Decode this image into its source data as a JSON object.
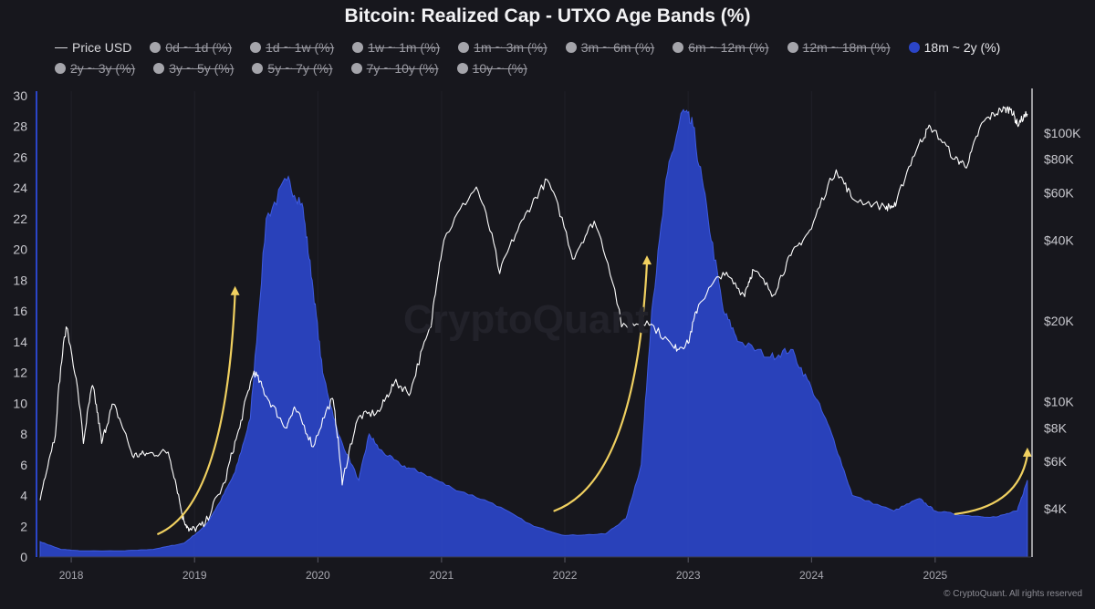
{
  "chart_data": {
    "type": "area",
    "title": "Bitcoin: Realized Cap - UTXO Age Bands (%)",
    "legend": [
      {
        "label": "Price USD",
        "kind": "line",
        "active": true
      },
      {
        "label": "0d ~ 1d (%)",
        "active": false
      },
      {
        "label": "1d ~ 1w (%)",
        "active": false
      },
      {
        "label": "1w ~ 1m (%)",
        "active": false
      },
      {
        "label": "1m ~ 3m (%)",
        "active": false
      },
      {
        "label": "3m ~ 6m (%)",
        "active": false
      },
      {
        "label": "6m ~ 12m (%)",
        "active": false
      },
      {
        "label": "12m ~ 18m (%)",
        "active": false
      },
      {
        "label": "18m ~ 2y (%)",
        "active": true,
        "color": "#2b45c8"
      },
      {
        "label": "2y ~ 3y (%)",
        "active": false
      },
      {
        "label": "3y ~ 5y (%)",
        "active": false
      },
      {
        "label": "5y ~ 7y (%)",
        "active": false
      },
      {
        "label": "7y ~ 10y (%)",
        "active": false
      },
      {
        "label": "10y ~ (%)",
        "active": false
      }
    ],
    "x_ticks": [
      "2018",
      "2019",
      "2020",
      "2021",
      "2022",
      "2023",
      "2024",
      "2025"
    ],
    "y_left": {
      "range": [
        0,
        30
      ],
      "ticks": [
        "0",
        "2",
        "4",
        "6",
        "8",
        "10",
        "12",
        "14",
        "16",
        "18",
        "20",
        "22",
        "24",
        "26",
        "28",
        "30"
      ]
    },
    "y_right": {
      "scale": "log",
      "ticks": [
        {
          "label": "$4K",
          "value": 4000
        },
        {
          "label": "$6K",
          "value": 6000
        },
        {
          "label": "$8K",
          "value": 8000
        },
        {
          "label": "$10K",
          "value": 10000
        },
        {
          "label": "$20K",
          "value": 20000
        },
        {
          "label": "$40K",
          "value": 40000
        },
        {
          "label": "$60K",
          "value": 60000
        },
        {
          "label": "$80K",
          "value": 80000
        },
        {
          "label": "$100K",
          "value": 100000
        }
      ]
    },
    "series": [
      {
        "name": "18m ~ 2y (%)",
        "kind": "area",
        "color": "#2b45c8",
        "points": [
          [
            "2017-10-01",
            1.0
          ],
          [
            "2017-12-01",
            0.5
          ],
          [
            "2018-02-01",
            0.4
          ],
          [
            "2018-06-01",
            0.4
          ],
          [
            "2018-09-01",
            0.5
          ],
          [
            "2018-12-01",
            0.9
          ],
          [
            "2019-02-01",
            2.0
          ],
          [
            "2019-03-15",
            3.5
          ],
          [
            "2019-05-01",
            5.5
          ],
          [
            "2019-06-15",
            9.0
          ],
          [
            "2019-08-01",
            22.0
          ],
          [
            "2019-10-01",
            24.5
          ],
          [
            "2019-11-15",
            23.0
          ],
          [
            "2019-12-15",
            18.0
          ],
          [
            "2020-01-15",
            12.0
          ],
          [
            "2020-03-01",
            8.0
          ],
          [
            "2020-05-01",
            5.0
          ],
          [
            "2020-06-01",
            8.0
          ],
          [
            "2020-07-01",
            7.0
          ],
          [
            "2020-09-01",
            6.0
          ],
          [
            "2020-11-01",
            5.5
          ],
          [
            "2021-02-01",
            4.5
          ],
          [
            "2021-06-01",
            3.5
          ],
          [
            "2021-10-01",
            2.0
          ],
          [
            "2022-01-01",
            1.4
          ],
          [
            "2022-05-01",
            1.5
          ],
          [
            "2022-07-01",
            2.5
          ],
          [
            "2022-08-15",
            6.0
          ],
          [
            "2022-09-15",
            16.0
          ],
          [
            "2022-11-01",
            25.0
          ],
          [
            "2022-12-15",
            29.0
          ],
          [
            "2023-01-15",
            28.0
          ],
          [
            "2023-03-01",
            22.0
          ],
          [
            "2023-04-15",
            16.0
          ],
          [
            "2023-06-01",
            14.0
          ],
          [
            "2023-09-01",
            13.0
          ],
          [
            "2023-11-01",
            13.5
          ],
          [
            "2024-01-01",
            11.0
          ],
          [
            "2024-03-01",
            8.0
          ],
          [
            "2024-05-01",
            4.0
          ],
          [
            "2024-09-01",
            3.0
          ],
          [
            "2024-11-15",
            3.8
          ],
          [
            "2025-01-01",
            3.0
          ],
          [
            "2025-04-01",
            2.7
          ],
          [
            "2025-07-01",
            2.6
          ],
          [
            "2025-09-01",
            3.0
          ],
          [
            "2025-10-01",
            5.0
          ]
        ]
      },
      {
        "name": "Price USD",
        "kind": "line",
        "axis": "right",
        "color": "#ffffff",
        "points": [
          [
            "2017-10-01",
            4300
          ],
          [
            "2017-11-15",
            7500
          ],
          [
            "2017-12-17",
            19000
          ],
          [
            "2018-02-06",
            7000
          ],
          [
            "2018-03-05",
            11500
          ],
          [
            "2018-04-01",
            7000
          ],
          [
            "2018-05-05",
            9800
          ],
          [
            "2018-07-01",
            6300
          ],
          [
            "2018-08-15",
            6400
          ],
          [
            "2018-10-15",
            6500
          ],
          [
            "2018-11-25",
            3800
          ],
          [
            "2018-12-15",
            3300
          ],
          [
            "2019-02-01",
            3500
          ],
          [
            "2019-04-01",
            5000
          ],
          [
            "2019-05-15",
            8000
          ],
          [
            "2019-06-26",
            13000
          ],
          [
            "2019-08-01",
            10500
          ],
          [
            "2019-09-26",
            8000
          ],
          [
            "2019-10-26",
            9400
          ],
          [
            "2019-12-18",
            6800
          ],
          [
            "2020-02-13",
            10300
          ],
          [
            "2020-03-13",
            4900
          ],
          [
            "2020-05-01",
            8800
          ],
          [
            "2020-07-01",
            9200
          ],
          [
            "2020-08-15",
            11800
          ],
          [
            "2020-10-01",
            10800
          ],
          [
            "2020-12-01",
            19000
          ],
          [
            "2021-01-08",
            40000
          ],
          [
            "2021-04-14",
            63000
          ],
          [
            "2021-06-22",
            30000
          ],
          [
            "2021-09-01",
            48000
          ],
          [
            "2021-11-10",
            67000
          ],
          [
            "2022-01-24",
            34000
          ],
          [
            "2022-03-29",
            47000
          ],
          [
            "2022-06-18",
            19000
          ],
          [
            "2022-09-01",
            20000
          ],
          [
            "2022-11-21",
            15800
          ],
          [
            "2023-01-01",
            16500
          ],
          [
            "2023-02-01",
            23000
          ],
          [
            "2023-04-14",
            30300
          ],
          [
            "2023-06-15",
            25000
          ],
          [
            "2023-07-13",
            31000
          ],
          [
            "2023-09-11",
            25000
          ],
          [
            "2023-11-01",
            35000
          ],
          [
            "2024-01-01",
            44000
          ],
          [
            "2024-03-14",
            73000
          ],
          [
            "2024-05-01",
            57000
          ],
          [
            "2024-08-05",
            53000
          ],
          [
            "2024-09-06",
            53500
          ],
          [
            "2024-11-12",
            90000
          ],
          [
            "2024-12-17",
            106000
          ],
          [
            "2025-02-28",
            80000
          ],
          [
            "2025-04-07",
            76000
          ],
          [
            "2025-05-22",
            110000
          ],
          [
            "2025-07-14",
            122000
          ],
          [
            "2025-08-14",
            123000
          ],
          [
            "2025-09-01",
            108000
          ],
          [
            "2025-10-01",
            118000
          ]
        ]
      }
    ],
    "annotations": [
      {
        "type": "arrow",
        "color": "#f0d060",
        "from": [
          "2018-09-15",
          1.5
        ],
        "to": [
          "2019-05-01",
          17.5
        ]
      },
      {
        "type": "arrow",
        "color": "#f0d060",
        "from": [
          "2021-12-01",
          3.0
        ],
        "to": [
          "2022-09-01",
          19.5
        ]
      },
      {
        "type": "arrow",
        "color": "#f0d060",
        "from": [
          "2025-03-01",
          2.8
        ],
        "to": [
          "2025-10-01",
          7.0
        ]
      }
    ]
  },
  "watermark": "CryptoQuant",
  "credit": "© CryptoQuant. All rights reserved"
}
